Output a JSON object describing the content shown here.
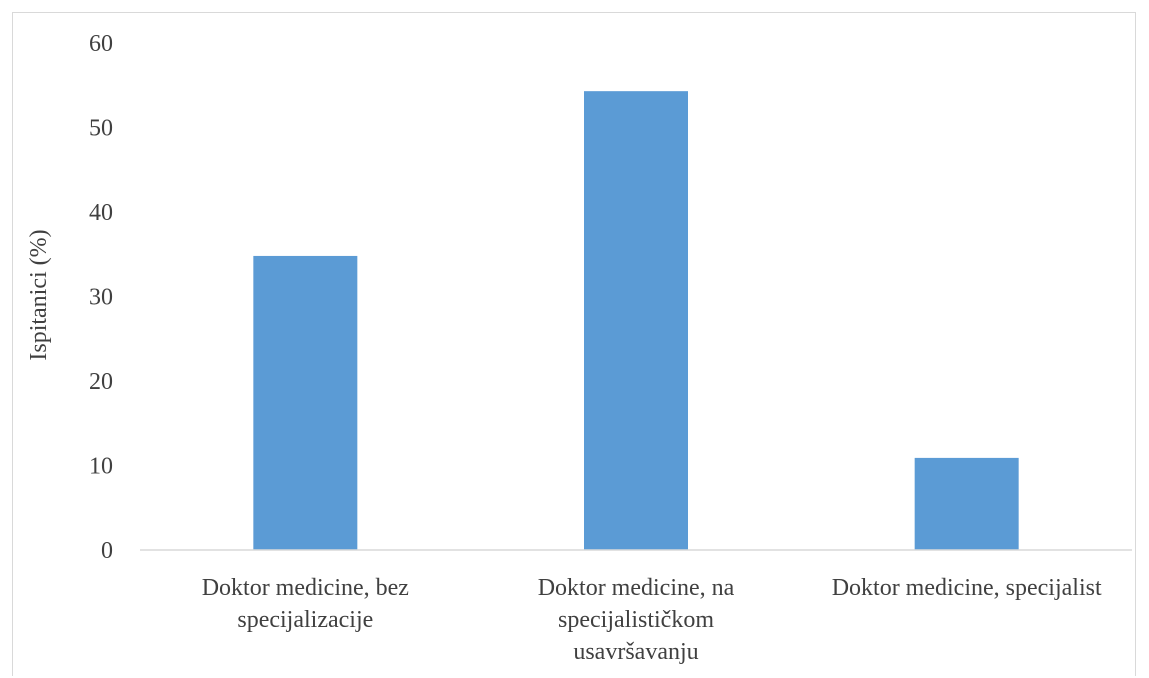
{
  "chart_data": {
    "type": "bar",
    "title": "",
    "xlabel": "",
    "ylabel": "Ispitanici (%)",
    "categories": [
      [
        "Doktor medicine, bez",
        "specijalizacije"
      ],
      [
        "Doktor medicine, na",
        "specijalističkom",
        "usavršavanju"
      ],
      [
        "Doktor medicine, specijalist"
      ]
    ],
    "values": [
      34.8,
      54.3,
      10.9
    ],
    "ylim": [
      0,
      60
    ],
    "yticks": [
      0,
      10,
      20,
      30,
      40,
      50,
      60
    ],
    "grid": false,
    "legend": "none",
    "colors": {
      "bar": "#5b9bd5",
      "axis": "#d9d9d9"
    }
  }
}
